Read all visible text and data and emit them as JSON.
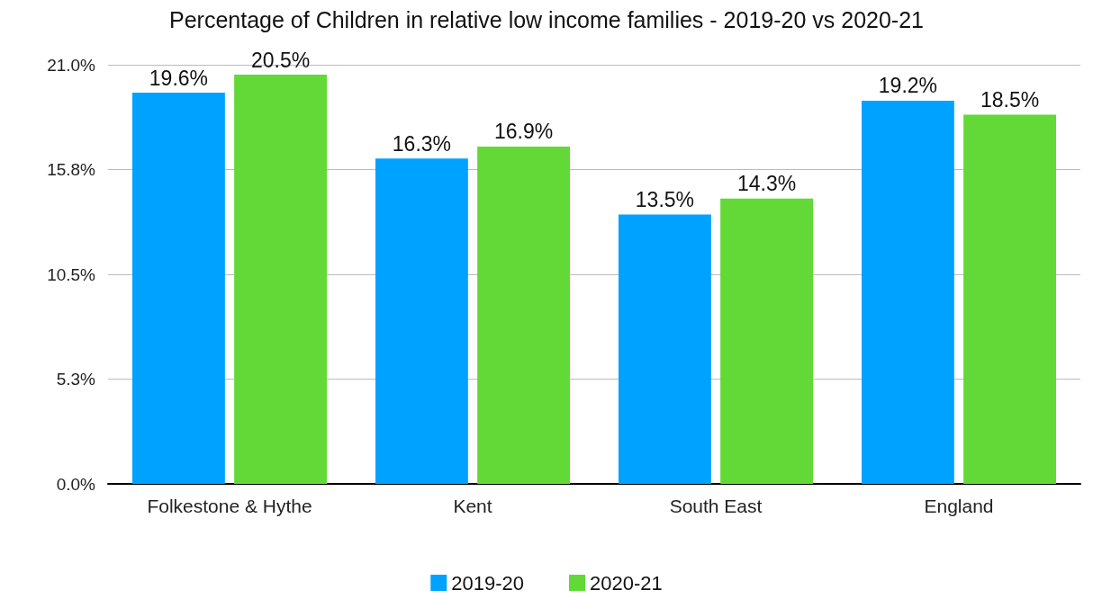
{
  "chart_data": {
    "type": "bar",
    "title": "Percentage of Children in relative low income families - 2019-20 vs 2020-21",
    "categories": [
      "Folkestone & Hythe",
      "Kent",
      "South East",
      "England"
    ],
    "series": [
      {
        "name": "2019-20",
        "color": "#00a2ff",
        "values": [
          19.6,
          16.3,
          13.5,
          19.2
        ],
        "value_labels": [
          "19.6%",
          "16.3%",
          "13.5%",
          "19.2%"
        ]
      },
      {
        "name": "2020-21",
        "color": "#62d936",
        "values": [
          20.5,
          16.9,
          14.3,
          18.5
        ],
        "value_labels": [
          "20.5%",
          "16.9%",
          "14.3%",
          "18.5%"
        ]
      }
    ],
    "ylim": [
      0,
      21
    ],
    "yticks": [
      {
        "value": 0,
        "label": "0.0%"
      },
      {
        "value": 5.25,
        "label": "5.3%"
      },
      {
        "value": 10.5,
        "label": "10.5%"
      },
      {
        "value": 15.75,
        "label": "15.8%"
      },
      {
        "value": 21,
        "label": "21.0%"
      }
    ],
    "grid": "y",
    "legend": "bottom"
  }
}
